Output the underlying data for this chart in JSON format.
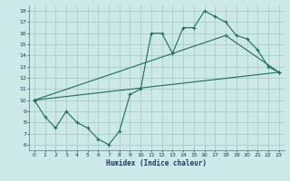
{
  "xlabel": "Humidex (Indice chaleur)",
  "bg_color": "#cce8e8",
  "grid_color": "#aacccc",
  "line_color": "#1a6e5e",
  "xlim": [
    -0.5,
    23.5
  ],
  "ylim": [
    5.5,
    18.5
  ],
  "xticks": [
    0,
    1,
    2,
    3,
    4,
    5,
    6,
    7,
    8,
    9,
    10,
    11,
    12,
    13,
    14,
    15,
    16,
    17,
    18,
    19,
    20,
    21,
    22,
    23
  ],
  "yticks": [
    6,
    7,
    8,
    9,
    10,
    11,
    12,
    13,
    14,
    15,
    16,
    17,
    18
  ],
  "line1_x": [
    0,
    1,
    2,
    3,
    4,
    5,
    6,
    7,
    8,
    9,
    10,
    11,
    12,
    13,
    14,
    15,
    16,
    17,
    18,
    19,
    20,
    21,
    22,
    23
  ],
  "line1_y": [
    10.0,
    8.5,
    7.5,
    9.0,
    8.0,
    7.5,
    6.5,
    6.0,
    7.2,
    10.5,
    11.0,
    16.0,
    16.0,
    14.2,
    16.5,
    16.5,
    18.0,
    17.5,
    17.0,
    15.8,
    15.5,
    14.5,
    13.0,
    12.5
  ],
  "line2_x": [
    0,
    23
  ],
  "line2_y": [
    10.0,
    12.5
  ],
  "line3_x": [
    0,
    18,
    23
  ],
  "line3_y": [
    10.0,
    15.8,
    12.5
  ]
}
